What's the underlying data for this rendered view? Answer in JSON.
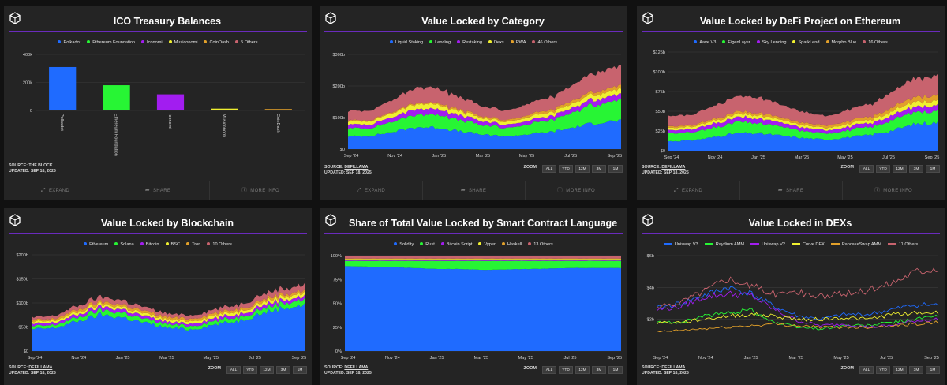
{
  "panels": [
    {
      "id": "ico",
      "title": "ICO Treasury Balances",
      "source": "SOURCE: THE BLOCK",
      "updated": "UPDATED: SEP 18, 2025",
      "footer": {
        "expand": "EXPAND",
        "share": "SHARE",
        "more": "MORE INFO"
      }
    },
    {
      "id": "cat",
      "title": "Value Locked by Category",
      "source_label": "SOURCE:",
      "source_link": "DEFILLAMA",
      "updated": "UPDATED: SEP 18, 2025",
      "footer": {
        "expand": "EXPAND",
        "share": "SHARE",
        "more": "MORE INFO"
      }
    },
    {
      "id": "eth",
      "title": "Value Locked by DeFi Project on Ethereum",
      "source_label": "SOURCE:",
      "source_link": "DEFILLAMA",
      "updated": "UPDATED: SEP 18, 2025",
      "footer": {
        "expand": "EXPAND",
        "share": "SHARE",
        "more": "MORE INFO"
      }
    },
    {
      "id": "chain",
      "title": "Value Locked by Blockchain",
      "source_label": "SOURCE:",
      "source_link": "DEFILLAMA",
      "updated": "UPDATED: SEP 18, 2025"
    },
    {
      "id": "lang",
      "title": "Share of Total Value Locked by Smart Contract Language",
      "source_label": "SOURCE:",
      "source_link": "DEFILLAMA",
      "updated": "UPDATED: SEP 18, 2025"
    },
    {
      "id": "dex",
      "title": "Value Locked in DEXs",
      "source_label": "SOURCE:",
      "source_link": "DEFILLAMA",
      "updated": "UPDATED: SEP 18, 2025"
    }
  ],
  "zoom": {
    "label": "ZOOM",
    "buttons": [
      "ALL",
      "YTD",
      "12M",
      "3M",
      "1M"
    ]
  },
  "chart_data": [
    {
      "panel": "ico",
      "type": "bar",
      "title": "ICO Treasury Balances",
      "categories": [
        "Polkadot",
        "Ethereum Foundation",
        "Iconomi",
        "Musiconomi",
        "CoinDash"
      ],
      "legend": [
        "Polkadot",
        "Ethereum Foundation",
        "Iconomi",
        "Musiconomi",
        "CoinDash",
        "5 Others"
      ],
      "colors": [
        "#1f6bff",
        "#27f534",
        "#a21df0",
        "#f0f030",
        "#e2a02a",
        "#c8636e"
      ],
      "values": [
        310000,
        180000,
        115000,
        13000,
        10000
      ],
      "ylim": [
        0,
        400000
      ],
      "yticks": [
        "0",
        "200k",
        "400k"
      ],
      "grid": true
    },
    {
      "panel": "cat",
      "type": "area",
      "stacked": true,
      "title": "Value Locked by Category",
      "x": [
        "Sep '24",
        "Oct '24",
        "Nov '24",
        "Dec '24",
        "Jan '25",
        "Feb '25",
        "Mar '25",
        "Apr '25",
        "May '25",
        "Jun '25",
        "Jul '25",
        "Aug '25",
        "Sep '25"
      ],
      "xticks": [
        "Sep '24",
        "Nov '24",
        "Jan '25",
        "Mar '25",
        "May '25",
        "Jul '25",
        "Sep '25"
      ],
      "ylim": [
        0,
        300000000000
      ],
      "yticks": [
        "$0",
        "$100b",
        "$200b",
        "$300b"
      ],
      "series": [
        {
          "name": "Liquid Staking",
          "color": "#1f6bff",
          "values": [
            40000000000.0,
            42000000000.0,
            55000000000.0,
            70000000000.0,
            68000000000.0,
            55000000000.0,
            45000000000.0,
            40000000000.0,
            48000000000.0,
            55000000000.0,
            70000000000.0,
            85000000000.0,
            90000000000.0
          ]
        },
        {
          "name": "Lending",
          "color": "#27f534",
          "values": [
            25000000000.0,
            26000000000.0,
            32000000000.0,
            40000000000.0,
            42000000000.0,
            36000000000.0,
            30000000000.0,
            27000000000.0,
            32000000000.0,
            38000000000.0,
            50000000000.0,
            60000000000.0,
            65000000000.0
          ]
        },
        {
          "name": "Restaking",
          "color": "#a21df0",
          "values": [
            12000000000.0,
            12000000000.0,
            15000000000.0,
            18000000000.0,
            18000000000.0,
            15000000000.0,
            12000000000.0,
            10000000000.0,
            12000000000.0,
            13000000000.0,
            16000000000.0,
            18000000000.0,
            18000000000.0
          ]
        },
        {
          "name": "Dexs",
          "color": "#f0f030",
          "values": [
            10000000000.0,
            10000000000.0,
            13000000000.0,
            16000000000.0,
            15000000000.0,
            12000000000.0,
            10000000000.0,
            9000000000.0,
            11000000000.0,
            12000000000.0,
            14000000000.0,
            16000000000.0,
            16000000000.0
          ]
        },
        {
          "name": "RWA",
          "color": "#e2a02a",
          "values": [
            3000000000.0,
            3000000000.0,
            3500000000.0,
            4000000000.0,
            4500000000.0,
            5000000000.0,
            5500000000.0,
            6000000000.0,
            7000000000.0,
            8000000000.0,
            9000000000.0,
            10000000000.0,
            11000000000.0
          ]
        },
        {
          "name": "46 Others",
          "color": "#c8636e",
          "values": [
            30000000000.0,
            31000000000.0,
            38000000000.0,
            48000000000.0,
            47000000000.0,
            40000000000.0,
            32000000000.0,
            30000000000.0,
            35000000000.0,
            40000000000.0,
            50000000000.0,
            60000000000.0,
            62000000000.0
          ]
        }
      ]
    },
    {
      "panel": "eth",
      "type": "area",
      "stacked": true,
      "title": "Value Locked by DeFi Project on Ethereum",
      "x": [
        "Sep '24",
        "Oct '24",
        "Nov '24",
        "Dec '24",
        "Jan '25",
        "Feb '25",
        "Mar '25",
        "Apr '25",
        "May '25",
        "Jun '25",
        "Jul '25",
        "Aug '25",
        "Sep '25"
      ],
      "xticks": [
        "Sep '24",
        "Nov '24",
        "Jan '25",
        "Mar '25",
        "May '25",
        "Jul '25",
        "Sep '25"
      ],
      "ylim": [
        0,
        125000000000
      ],
      "yticks": [
        "$0",
        "$25b",
        "$50b",
        "$75b",
        "$100b",
        "$125b"
      ],
      "series": [
        {
          "name": "Aave V3",
          "color": "#1f6bff",
          "values": [
            12000000000.0,
            13000000000.0,
            17000000000.0,
            22000000000.0,
            22000000000.0,
            19000000000.0,
            16000000000.0,
            14000000000.0,
            17000000000.0,
            20000000000.0,
            26000000000.0,
            34000000000.0,
            36000000000.0
          ]
        },
        {
          "name": "EigenLayer",
          "color": "#27f534",
          "values": [
            10000000000.0,
            10000000000.0,
            12000000000.0,
            14000000000.0,
            13000000000.0,
            11000000000.0,
            9000000000.0,
            8000000000.0,
            9000000000.0,
            10000000000.0,
            13000000000.0,
            15000000000.0,
            15000000000.0
          ]
        },
        {
          "name": "Sky Lending",
          "color": "#a21df0",
          "values": [
            4000000000.0,
            4000000000.0,
            5000000000.0,
            6000000000.0,
            6000000000.0,
            5000000000.0,
            4500000000.0,
            4000000000.0,
            4500000000.0,
            5000000000.0,
            6000000000.0,
            7000000000.0,
            7000000000.0
          ]
        },
        {
          "name": "SparkLend",
          "color": "#f0f030",
          "values": [
            3000000000.0,
            3000000000.0,
            3500000000.0,
            4000000000.0,
            4000000000.0,
            3500000000.0,
            3000000000.0,
            3000000000.0,
            3500000000.0,
            4000000000.0,
            5000000000.0,
            6000000000.0,
            6000000000.0
          ]
        },
        {
          "name": "Morpho Blue",
          "color": "#e2a02a",
          "values": [
            2000000000.0,
            2000000000.0,
            2500000000.0,
            3000000000.0,
            3000000000.0,
            3000000000.0,
            3000000000.0,
            3000000000.0,
            3500000000.0,
            4000000000.0,
            5000000000.0,
            6000000000.0,
            7000000000.0
          ]
        },
        {
          "name": "16 Others",
          "color": "#c8636e",
          "values": [
            13000000000.0,
            13000000000.0,
            16000000000.0,
            20000000000.0,
            19000000000.0,
            16000000000.0,
            13000000000.0,
            12000000000.0,
            14000000000.0,
            16000000000.0,
            20000000000.0,
            24000000000.0,
            24000000000.0
          ]
        }
      ]
    },
    {
      "panel": "chain",
      "type": "area",
      "stacked": true,
      "title": "Value Locked by Blockchain",
      "x": [
        "Sep '24",
        "Oct '24",
        "Nov '24",
        "Dec '24",
        "Jan '25",
        "Feb '25",
        "Mar '25",
        "Apr '25",
        "May '25",
        "Jun '25",
        "Jul '25",
        "Aug '25",
        "Sep '25"
      ],
      "xticks": [
        "Sep '24",
        "Nov '24",
        "Jan '25",
        "Mar '25",
        "May '25",
        "Jul '25",
        "Sep '25"
      ],
      "ylim": [
        0,
        200000000000
      ],
      "yticks": [
        "$0",
        "$50b",
        "$100b",
        "$150b",
        "$200b"
      ],
      "series": [
        {
          "name": "Ethereum",
          "color": "#1f6bff",
          "values": [
            45000000000.0,
            48000000000.0,
            62000000000.0,
            75000000000.0,
            70000000000.0,
            58000000000.0,
            48000000000.0,
            45000000000.0,
            55000000000.0,
            62000000000.0,
            78000000000.0,
            90000000000.0,
            95000000000.0
          ]
        },
        {
          "name": "Solana",
          "color": "#27f534",
          "values": [
            6000000000.0,
            6000000000.0,
            8000000000.0,
            10000000000.0,
            10000000000.0,
            8000000000.0,
            7000000000.0,
            7000000000.0,
            8000000000.0,
            8000000000.0,
            9000000000.0,
            11000000000.0,
            11000000000.0
          ]
        },
        {
          "name": "Bitcoin",
          "color": "#a21df0",
          "values": [
            5000000000.0,
            5000000000.0,
            6000000000.0,
            7000000000.0,
            7000000000.0,
            6000000000.0,
            5000000000.0,
            5000000000.0,
            6000000000.0,
            6000000000.0,
            7000000000.0,
            7000000000.0,
            7000000000.0
          ]
        },
        {
          "name": "BSC",
          "color": "#f0f030",
          "values": [
            4000000000.0,
            4000000000.0,
            5000000000.0,
            5000000000.0,
            5000000000.0,
            5000000000.0,
            5000000000.0,
            5000000000.0,
            5000000000.0,
            6000000000.0,
            6000000000.0,
            7000000000.0,
            7000000000.0
          ]
        },
        {
          "name": "Tron",
          "color": "#e2a02a",
          "values": [
            4000000000.0,
            4000000000.0,
            5000000000.0,
            5000000000.0,
            5000000000.0,
            5000000000.0,
            5000000000.0,
            5000000000.0,
            5000000000.0,
            5000000000.0,
            5000000000.0,
            5000000000.0,
            5000000000.0
          ]
        },
        {
          "name": "10 Others",
          "color": "#c8636e",
          "values": [
            6000000000.0,
            6000000000.0,
            8000000000.0,
            10000000000.0,
            9000000000.0,
            8000000000.0,
            7000000000.0,
            7000000000.0,
            8000000000.0,
            9000000000.0,
            11000000000.0,
            12000000000.0,
            12000000000.0
          ]
        }
      ]
    },
    {
      "panel": "lang",
      "type": "area",
      "stacked": true,
      "normalized": true,
      "title": "Share of Total Value Locked by Smart Contract Language",
      "x": [
        "Sep '24",
        "Oct '24",
        "Nov '24",
        "Dec '24",
        "Jan '25",
        "Feb '25",
        "Mar '25",
        "Apr '25",
        "May '25",
        "Jun '25",
        "Jul '25",
        "Aug '25",
        "Sep '25"
      ],
      "xticks": [
        "Sep '24",
        "Nov '24",
        "Jan '25",
        "Mar '25",
        "May '25",
        "Jul '25",
        "Sep '25"
      ],
      "ylim": [
        0,
        100
      ],
      "yticks": [
        "0%",
        "25%",
        "50%",
        "75%",
        "100%"
      ],
      "series": [
        {
          "name": "Solidity",
          "color": "#1f6bff",
          "values": [
            89,
            88.5,
            88,
            87,
            86,
            86,
            85,
            85.5,
            86,
            86.5,
            87,
            87,
            87
          ]
        },
        {
          "name": "Rust",
          "color": "#27f534",
          "values": [
            5.5,
            6,
            6.5,
            7.5,
            8.5,
            8.5,
            9.5,
            9,
            8.5,
            8,
            7.5,
            7.5,
            7.5
          ]
        },
        {
          "name": "Bitcoin Script",
          "color": "#a21df0",
          "values": [
            1,
            1,
            1,
            1,
            1,
            1,
            1,
            1,
            1,
            1,
            1,
            1,
            1
          ]
        },
        {
          "name": "Vyper",
          "color": "#f0f030",
          "values": [
            1,
            1,
            1,
            1,
            1,
            1,
            1,
            1,
            1,
            1,
            1,
            1,
            1
          ]
        },
        {
          "name": "Haskell",
          "color": "#e2a02a",
          "values": [
            0.5,
            0.5,
            0.5,
            0.5,
            0.5,
            0.5,
            0.5,
            0.5,
            0.5,
            0.5,
            0.5,
            0.5,
            0.5
          ]
        },
        {
          "name": "13 Others",
          "color": "#c8636e",
          "values": [
            3,
            3,
            3,
            3,
            3,
            3,
            3,
            3,
            3,
            3,
            3,
            3,
            3
          ]
        }
      ]
    },
    {
      "panel": "dex",
      "type": "line",
      "title": "Value Locked in DEXs",
      "x": [
        "Sep '24",
        "Oct '24",
        "Nov '24",
        "Dec '24",
        "Jan '25",
        "Feb '25",
        "Mar '25",
        "Apr '25",
        "May '25",
        "Jun '25",
        "Jul '25",
        "Aug '25",
        "Sep '25"
      ],
      "xticks": [
        "Sep '24",
        "Nov '24",
        "Jan '25",
        "Mar '25",
        "May '25",
        "Jul '25",
        "Sep '25"
      ],
      "ylim": [
        0,
        6000000000
      ],
      "yticks": [
        "$2b",
        "$4b",
        "$6b"
      ],
      "series": [
        {
          "name": "Uniswap V3",
          "color": "#1f6bff",
          "values": [
            2700000000.0,
            3000000000.0,
            3500000000.0,
            4000000000.0,
            3600000000.0,
            2800000000.0,
            2200000000.0,
            2000000000.0,
            2300000000.0,
            2300000000.0,
            2600000000.0,
            2900000000.0,
            2900000000.0
          ]
        },
        {
          "name": "Raydium AMM",
          "color": "#27f534",
          "values": [
            1800000000.0,
            1800000000.0,
            2200000000.0,
            2400000000.0,
            2600000000.0,
            1800000000.0,
            1500000000.0,
            1400000000.0,
            1600000000.0,
            1600000000.0,
            1800000000.0,
            2000000000.0,
            2200000000.0
          ]
        },
        {
          "name": "Uniswap V2",
          "color": "#a21df0",
          "values": [
            2600000000.0,
            2800000000.0,
            3400000000.0,
            3600000000.0,
            3500000000.0,
            2600000000.0,
            1900000000.0,
            1600000000.0,
            1700000000.0,
            1500000000.0,
            1600000000.0,
            1900000000.0,
            2000000000.0
          ]
        },
        {
          "name": "Curve DEX",
          "color": "#f0f030",
          "values": [
            1800000000.0,
            1800000000.0,
            2000000000.0,
            2200000000.0,
            2300000000.0,
            2200000000.0,
            2000000000.0,
            2000000000.0,
            2100000000.0,
            2000000000.0,
            2300000000.0,
            2400000000.0,
            2400000000.0
          ]
        },
        {
          "name": "PancakeSwap AMM",
          "color": "#e2a02a",
          "values": [
            1200000000.0,
            1300000000.0,
            1400000000.0,
            1500000000.0,
            1600000000.0,
            1700000000.0,
            1600000000.0,
            1500000000.0,
            1500000000.0,
            1500000000.0,
            1600000000.0,
            1700000000.0,
            1800000000.0
          ]
        },
        {
          "name": "11 Others",
          "color": "#c8636e",
          "values": [
            2700000000.0,
            3100000000.0,
            3800000000.0,
            4600000000.0,
            4100000000.0,
            3600000000.0,
            3700000000.0,
            3400000000.0,
            3600000000.0,
            3800000000.0,
            4300000000.0,
            5000000000.0,
            5300000000.0
          ]
        }
      ]
    }
  ]
}
